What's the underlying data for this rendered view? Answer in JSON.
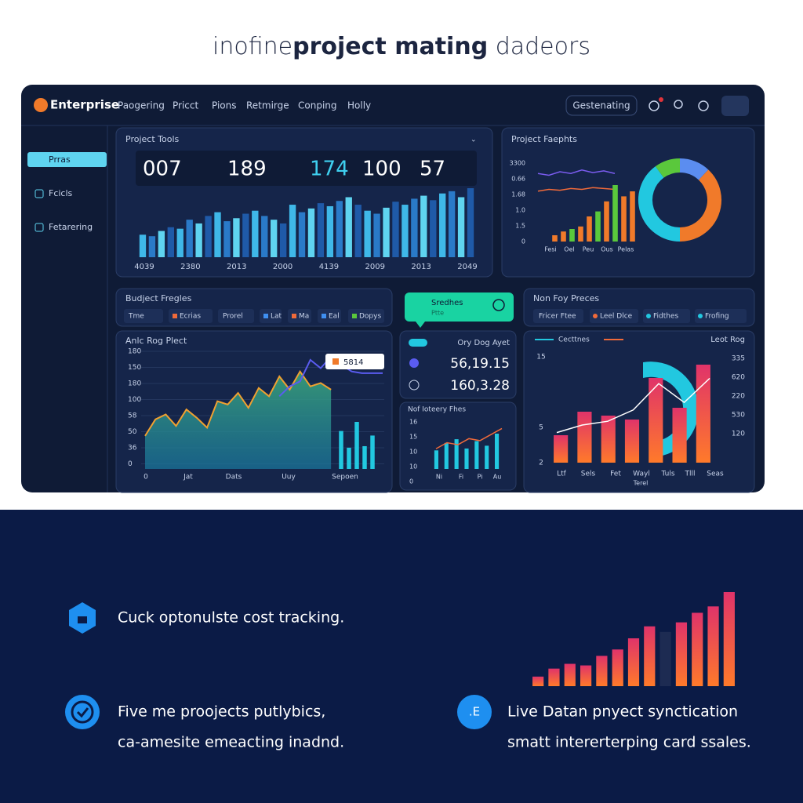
{
  "header": {
    "title_parts": [
      "inofine",
      "project mating",
      " dadeors"
    ]
  },
  "nav": {
    "logo": "Enterprise",
    "items": [
      "Paogering",
      "Pricct",
      "Pions",
      "Retmirge",
      "Conping",
      "Holly"
    ],
    "button": "Gestenating"
  },
  "sidebar": {
    "items": [
      "Prras",
      "Fcicls",
      "Fetarering"
    ]
  },
  "project_tools": {
    "title": "Project Tools",
    "stats": [
      "007",
      "189",
      "174",
      "100",
      "57"
    ],
    "values": [
      30,
      28,
      35,
      40,
      38,
      50,
      45,
      55,
      60,
      48,
      52,
      58,
      62,
      55,
      50,
      45,
      70,
      60,
      65,
      72,
      68,
      75,
      80,
      70,
      62,
      58,
      66,
      74,
      70,
      78,
      82,
      76,
      85,
      88,
      80,
      92
    ],
    "x_labels": [
      "4039",
      "2380",
      "2013",
      "2000",
      "4139",
      "2009",
      "2013",
      "2049"
    ]
  },
  "project_insights": {
    "title": "Project Faephts",
    "y_labels": [
      "3300",
      "0.66",
      "1.68",
      "1.0",
      "1.5",
      "0"
    ],
    "series": [
      {
        "values": [
          60,
          58,
          62,
          60,
          64,
          61,
          63,
          60
        ],
        "color": "#7b5cf0"
      },
      {
        "values": [
          40,
          42,
          41,
          43,
          42,
          44,
          43,
          42
        ],
        "color": "#f06a3a"
      }
    ],
    "bars": {
      "values": [
        5,
        8,
        10,
        12,
        20,
        24,
        32,
        45,
        36,
        40
      ],
      "colors": [
        "#f07a2a",
        "#f07a2a",
        "#5ac83c",
        "#f07a2a",
        "#f07a2a",
        "#5ac83c",
        "#f07a2a",
        "#5ac83c",
        "#f07a2a",
        "#f07a2a"
      ]
    },
    "donut": {
      "values": [
        12,
        38,
        40,
        10
      ],
      "colors": [
        "#5b8df0",
        "#f07a2a",
        "#22c8e0",
        "#5ac83c"
      ]
    },
    "x_labels": [
      "Fesi",
      "Oel",
      "Peu",
      "Ous",
      "Pelas"
    ]
  },
  "budget": {
    "title": "Budject Fregles",
    "chips": [
      "Tme",
      "Ecrias",
      "Prorel",
      "Lat",
      "Ma",
      "Eal",
      "Dopys"
    ]
  },
  "area_chart": {
    "title": "Anlc Rog Plect",
    "y_labels": [
      "180",
      "150",
      "180",
      "100",
      "58",
      "50",
      "36",
      "0"
    ],
    "series": [
      {
        "values": [
          40,
          60,
          66,
          52,
          72,
          62,
          50,
          82,
          78,
          92,
          74,
          98,
          88,
          112,
          96,
          118,
          100,
          104,
          96,
          null,
          null,
          null,
          null,
          null
        ],
        "color": "#f0a030"
      },
      {
        "values": [
          null,
          null,
          null,
          null,
          null,
          null,
          null,
          null,
          null,
          null,
          null,
          null,
          null,
          88,
          100,
          106,
          132,
          122,
          136,
          126,
          118,
          116,
          116,
          116
        ],
        "color": "#5a5cf0"
      }
    ],
    "tooltip": "5814",
    "bars": [
      50,
      28,
      62,
      30,
      44
    ],
    "x_labels": [
      "0",
      "Jat",
      "Dats",
      "Uuy",
      "Sepoen"
    ]
  },
  "callout": {
    "title": "Sredhes",
    "sub": "Ptte"
  },
  "stats_panel": {
    "title": "Ory Dog Ayet",
    "values": [
      "56,19.15",
      "160,3.28"
    ]
  },
  "mini_chart": {
    "title": "Nof Ioteery Fhes",
    "y_labels": [
      "16",
      "15",
      "10",
      "10",
      "0"
    ],
    "bars": [
      20,
      28,
      32,
      22,
      30,
      25,
      38
    ],
    "line": [
      20,
      26,
      24,
      30,
      28,
      34,
      40
    ],
    "x_labels": [
      "Ni",
      "Fi",
      "Pi",
      "Au"
    ]
  },
  "right_panel": {
    "title": "Non Foy Preces",
    "chips": [
      "Fricer Ftee",
      "Leel Dlce",
      "Fidthes",
      "Frofing"
    ]
  },
  "right_chart": {
    "legend": [
      "Cecttnes",
      "Leot Rog"
    ],
    "left_labels": [
      "15",
      "5",
      "2"
    ],
    "right_labels": [
      "335",
      "620",
      "220",
      "530",
      "120"
    ],
    "bars": [
      35,
      65,
      60,
      55,
      108,
      70,
      125
    ],
    "line": [
      40,
      50,
      55,
      70,
      105,
      80,
      112
    ],
    "x_labels": [
      "Ltf",
      "Sels",
      "Fet",
      "Wayl",
      "Tuls",
      "Tlll",
      "Seas"
    ],
    "x_title": "Terel"
  },
  "features": [
    {
      "lines": [
        "Cuck optonulste cost tracking."
      ]
    },
    {
      "lines": [
        "Five me proojects putlybics,",
        "ca-amesite emeacting inadnd."
      ]
    },
    {
      "lines": [
        "Live Datan pnyect synctication",
        "smatt intererterping card ssales."
      ]
    }
  ],
  "promo_bars": [
    12,
    22,
    28,
    26,
    38,
    46,
    60,
    75,
    68,
    80,
    92,
    100,
    118
  ]
}
